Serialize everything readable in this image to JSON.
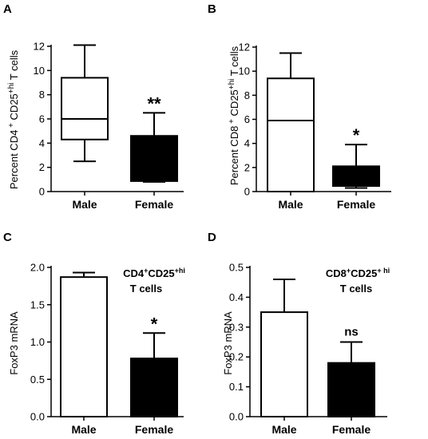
{
  "chart_data": [
    {
      "type": "box",
      "panel_label": "A",
      "ylabel": "Percent CD4 + CD25+hi T cells",
      "ylabel_parts": {
        "pre": "Percent CD4",
        "sup1": "+",
        "mid": " CD25",
        "sup2": "+hi",
        "post": " T cells"
      },
      "ylim": [
        0,
        12
      ],
      "yticks": [
        0,
        2,
        4,
        6,
        8,
        10,
        12
      ],
      "categories": [
        "Male",
        "Female"
      ],
      "boxes": [
        {
          "category": "Male",
          "min": 2.5,
          "q1": 4.3,
          "median": 6.0,
          "q3": 9.4,
          "max": 12.1,
          "fill": "#ffffff"
        },
        {
          "category": "Female",
          "min": 0.8,
          "q1": 0.9,
          "median": 0.9,
          "q3": 4.6,
          "max": 6.5,
          "fill": "#000000"
        }
      ],
      "significance": [
        {
          "category": "Female",
          "text": "**"
        }
      ]
    },
    {
      "type": "box",
      "panel_label": "B",
      "ylabel": "Percent CD8 + CD25+hi T cells",
      "ylabel_parts": {
        "pre": "Percent CD8",
        "sup1": "+",
        "mid": " CD25",
        "sup2": "+hi",
        "post": " T cells"
      },
      "ylim": [
        0,
        12
      ],
      "yticks": [
        0,
        2,
        4,
        6,
        8,
        10,
        12
      ],
      "categories": [
        "Male",
        "Female"
      ],
      "boxes": [
        {
          "category": "Male",
          "min": 0.0,
          "q1": 0.0,
          "median": 5.9,
          "q3": 9.4,
          "max": 11.5,
          "fill": "#ffffff"
        },
        {
          "category": "Female",
          "min": 0.3,
          "q1": 0.5,
          "median": 0.5,
          "q3": 2.1,
          "max": 3.9,
          "fill": "#000000"
        }
      ],
      "significance": [
        {
          "category": "Female",
          "text": "*"
        }
      ]
    },
    {
      "type": "bar",
      "panel_label": "C",
      "ylabel": "FoxP3 mRNA",
      "ylim": [
        0,
        2.0
      ],
      "yticks": [
        "0.0",
        "0.5",
        "1.0",
        "1.5",
        "2.0"
      ],
      "categories": [
        "Male",
        "Female"
      ],
      "values": [
        1.87,
        0.78
      ],
      "errors": [
        0.06,
        0.34
      ],
      "fills": [
        "#ffffff",
        "#000000"
      ],
      "annotation": {
        "line1_parts": {
          "a": "CD4",
          "s1": "+",
          "b": "CD25",
          "s2": "+hi"
        },
        "line2": "T cells"
      },
      "significance": [
        {
          "category": "Female",
          "text": "*"
        }
      ]
    },
    {
      "type": "bar",
      "panel_label": "D",
      "ylabel": "FoxP3 mRNA",
      "ylim": [
        0,
        0.5
      ],
      "yticks": [
        "0.0",
        "0.1",
        "0.2",
        "0.3",
        "0.4",
        "0.5"
      ],
      "categories": [
        "Male",
        "Female"
      ],
      "values": [
        0.35,
        0.18
      ],
      "errors": [
        0.11,
        0.07
      ],
      "fills": [
        "#ffffff",
        "#000000"
      ],
      "annotation": {
        "line1_parts": {
          "a": "CD8",
          "s1": "+",
          "b": "CD25",
          "s2": "+ hi"
        },
        "line2": "T cells"
      },
      "significance": [
        {
          "category": "Female",
          "text": "ns"
        }
      ]
    }
  ]
}
